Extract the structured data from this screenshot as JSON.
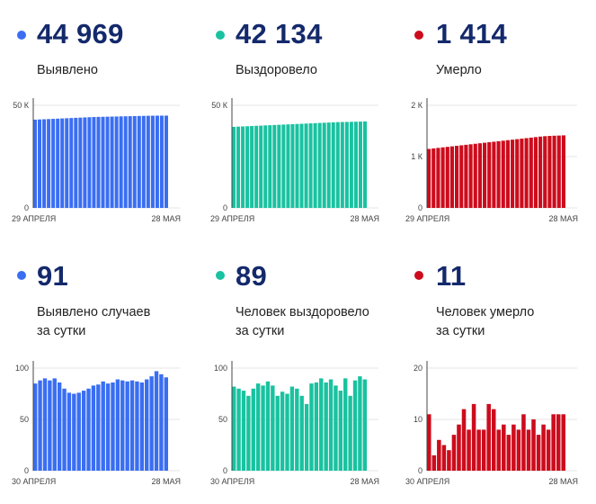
{
  "colors": {
    "blue": "#3a6ef2",
    "teal": "#19c2a0",
    "red": "#cc0c1c",
    "number": "#14296b",
    "grid": "#e6e6e6"
  },
  "panels": [
    {
      "value": "44 969",
      "label_lines": [
        "Выявлено"
      ],
      "color": "#3a6ef2",
      "chart_data": {
        "type": "bar",
        "ylim": [
          0,
          50000
        ],
        "yticks": [
          {
            "v": 0,
            "t": "0"
          },
          {
            "v": 50000,
            "t": "50 К"
          }
        ],
        "xstart": "29 АПРЕЛЯ",
        "xend": "28 МАЯ",
        "values": [
          43000,
          43100,
          43200,
          43300,
          43400,
          43500,
          43600,
          43700,
          43800,
          43900,
          44000,
          44100,
          44200,
          44300,
          44350,
          44400,
          44450,
          44500,
          44550,
          44600,
          44650,
          44700,
          44750,
          44800,
          44850,
          44900,
          44930,
          44950,
          44960,
          44969
        ]
      }
    },
    {
      "value": "42 134",
      "label_lines": [
        "Выздоровело"
      ],
      "color": "#19c2a0",
      "chart_data": {
        "type": "bar",
        "ylim": [
          0,
          50000
        ],
        "yticks": [
          {
            "v": 0,
            "t": "0"
          },
          {
            "v": 50000,
            "t": "50 К"
          }
        ],
        "xstart": "29 АПРЕЛЯ",
        "xend": "28 МАЯ",
        "values": [
          39500,
          39600,
          39700,
          39800,
          39900,
          40000,
          40100,
          40200,
          40300,
          40400,
          40500,
          40600,
          40700,
          40800,
          40900,
          41000,
          41100,
          41200,
          41300,
          41400,
          41500,
          41600,
          41700,
          41800,
          41850,
          41900,
          41950,
          42000,
          42060,
          42134
        ]
      }
    },
    {
      "value": "1 414",
      "label_lines": [
        "Умерло"
      ],
      "color": "#cc0c1c",
      "chart_data": {
        "type": "bar",
        "ylim": [
          0,
          2000
        ],
        "yticks": [
          {
            "v": 0,
            "t": "0"
          },
          {
            "v": 1000,
            "t": "1 К"
          },
          {
            "v": 2000,
            "t": "2 К"
          }
        ],
        "xstart": "29 АПРЕЛЯ",
        "xend": "28 МАЯ",
        "values": [
          1150,
          1160,
          1170,
          1180,
          1190,
          1200,
          1210,
          1220,
          1230,
          1240,
          1250,
          1260,
          1270,
          1280,
          1290,
          1300,
          1310,
          1320,
          1330,
          1340,
          1350,
          1360,
          1370,
          1380,
          1390,
          1398,
          1403,
          1407,
          1410,
          1414
        ]
      }
    },
    {
      "value": "91",
      "label_lines": [
        "Выявлено случаев",
        "за сутки"
      ],
      "color": "#3a6ef2",
      "chart_data": {
        "type": "bar",
        "ylim": [
          0,
          100
        ],
        "yticks": [
          {
            "v": 0,
            "t": "0"
          },
          {
            "v": 50,
            "t": "50"
          },
          {
            "v": 100,
            "t": "100"
          }
        ],
        "xstart": "30 АПРЕЛЯ",
        "xend": "28 МАЯ",
        "values": [
          85,
          88,
          90,
          88,
          90,
          86,
          80,
          76,
          75,
          76,
          78,
          80,
          83,
          84,
          87,
          85,
          86,
          89,
          88,
          87,
          88,
          87,
          86,
          89,
          92,
          97,
          94,
          91
        ]
      }
    },
    {
      "value": "89",
      "label_lines": [
        "Человек выздоровело",
        "за сутки"
      ],
      "color": "#19c2a0",
      "chart_data": {
        "type": "bar",
        "ylim": [
          0,
          100
        ],
        "yticks": [
          {
            "v": 0,
            "t": "0"
          },
          {
            "v": 50,
            "t": "50"
          },
          {
            "v": 100,
            "t": "100"
          }
        ],
        "xstart": "30 АПРЕЛЯ",
        "xend": "28 МАЯ",
        "values": [
          82,
          80,
          78,
          73,
          80,
          85,
          83,
          87,
          83,
          73,
          77,
          75,
          82,
          80,
          73,
          65,
          85,
          86,
          90,
          86,
          89,
          83,
          78,
          90,
          73,
          88,
          92,
          89
        ]
      }
    },
    {
      "value": "11",
      "label_lines": [
        "Человек умерло",
        "за сутки"
      ],
      "color": "#cc0c1c",
      "chart_data": {
        "type": "bar",
        "ylim": [
          0,
          20
        ],
        "yticks": [
          {
            "v": 0,
            "t": "0"
          },
          {
            "v": 10,
            "t": "10"
          },
          {
            "v": 20,
            "t": "20"
          }
        ],
        "xstart": "30 АПРЕЛЯ",
        "xend": "28 МАЯ",
        "values": [
          11,
          3,
          6,
          5,
          4,
          7,
          9,
          12,
          8,
          13,
          8,
          8,
          13,
          12,
          8,
          9,
          7,
          9,
          8,
          11,
          8,
          10,
          7,
          9,
          8,
          11,
          11,
          11
        ]
      }
    }
  ]
}
